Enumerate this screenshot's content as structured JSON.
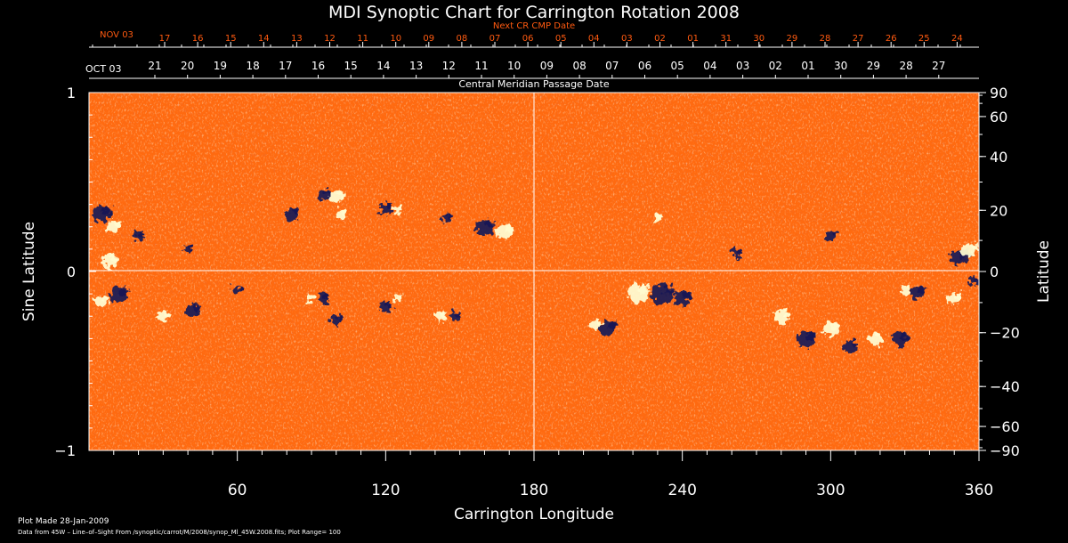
{
  "chart_data": {
    "type": "heatmap",
    "title": "MDI Synoptic Chart for Carrington Rotation 2008",
    "xlabel": "Carrington Longitude",
    "ylabel_left": "Sine Latitude",
    "ylabel_right": "Latitude",
    "xlim": [
      0,
      360
    ],
    "ylim": [
      -1,
      1
    ],
    "x_ticks": [
      60,
      120,
      180,
      240,
      300,
      360
    ],
    "y_ticks_left": [
      "1",
      "0",
      "−1"
    ],
    "y_ticks_right": [
      90,
      60,
      40,
      20,
      0,
      -20,
      -40,
      -60,
      -90
    ],
    "y_ticks_right_labels": [
      "90",
      "60",
      "40",
      "20",
      "0",
      "−20",
      "−40",
      "−60",
      "−90"
    ],
    "top_axis": {
      "title": "Next CR CMP Date",
      "start_label": "NOV 03",
      "dates": [
        "17",
        "16",
        "15",
        "14",
        "13",
        "12",
        "11",
        "10",
        "09",
        "08",
        "07",
        "06",
        "05",
        "04",
        "03",
        "02",
        "01",
        "31",
        "30",
        "29",
        "28",
        "27",
        "26",
        "25",
        "24"
      ]
    },
    "mid_axis": {
      "title": "Central Meridian Passage Date",
      "start_label": "OCT 03",
      "dates": [
        "21",
        "20",
        "19",
        "18",
        "17",
        "16",
        "15",
        "14",
        "13",
        "12",
        "11",
        "10",
        "09",
        "08",
        "07",
        "06",
        "05",
        "04",
        "03",
        "02",
        "01",
        "30",
        "29",
        "28",
        "27"
      ]
    },
    "colormap": {
      "background": "#ff6a10",
      "positive": "#fffbd0",
      "negative": "#1a1a55",
      "range_max": 100
    },
    "active_regions": [
      {
        "lon": 5,
        "sinlat": 0.32,
        "pol": "neg",
        "size": 1.0
      },
      {
        "lon": 10,
        "sinlat": 0.25,
        "pol": "pos",
        "size": 0.8
      },
      {
        "lon": 8,
        "sinlat": 0.06,
        "pol": "pos",
        "size": 0.9
      },
      {
        "lon": 20,
        "sinlat": 0.2,
        "pol": "neg",
        "size": 0.6
      },
      {
        "lon": 12,
        "sinlat": -0.13,
        "pol": "neg",
        "size": 1.0
      },
      {
        "lon": 5,
        "sinlat": -0.17,
        "pol": "pos",
        "size": 0.7
      },
      {
        "lon": 40,
        "sinlat": 0.13,
        "pol": "neg",
        "size": 0.5
      },
      {
        "lon": 42,
        "sinlat": -0.22,
        "pol": "neg",
        "size": 0.8
      },
      {
        "lon": 30,
        "sinlat": -0.25,
        "pol": "pos",
        "size": 0.7
      },
      {
        "lon": 100,
        "sinlat": 0.42,
        "pol": "pos",
        "size": 0.8
      },
      {
        "lon": 95,
        "sinlat": 0.43,
        "pol": "neg",
        "size": 0.7
      },
      {
        "lon": 102,
        "sinlat": 0.32,
        "pol": "pos",
        "size": 0.6
      },
      {
        "lon": 82,
        "sinlat": 0.32,
        "pol": "neg",
        "size": 0.8
      },
      {
        "lon": 120,
        "sinlat": 0.35,
        "pol": "neg",
        "size": 0.7
      },
      {
        "lon": 125,
        "sinlat": 0.35,
        "pol": "pos",
        "size": 0.5
      },
      {
        "lon": 160,
        "sinlat": 0.25,
        "pol": "neg",
        "size": 1.0
      },
      {
        "lon": 168,
        "sinlat": 0.22,
        "pol": "pos",
        "size": 0.9
      },
      {
        "lon": 145,
        "sinlat": 0.3,
        "pol": "neg",
        "size": 0.6
      },
      {
        "lon": 95,
        "sinlat": -0.15,
        "pol": "neg",
        "size": 0.6
      },
      {
        "lon": 90,
        "sinlat": -0.15,
        "pol": "pos",
        "size": 0.5
      },
      {
        "lon": 100,
        "sinlat": -0.27,
        "pol": "neg",
        "size": 0.7
      },
      {
        "lon": 120,
        "sinlat": -0.2,
        "pol": "neg",
        "size": 0.7
      },
      {
        "lon": 148,
        "sinlat": -0.25,
        "pol": "neg",
        "size": 0.6
      },
      {
        "lon": 142,
        "sinlat": -0.25,
        "pol": "pos",
        "size": 0.6
      },
      {
        "lon": 125,
        "sinlat": -0.15,
        "pol": "pos",
        "size": 0.5
      },
      {
        "lon": 60,
        "sinlat": -0.1,
        "pol": "neg",
        "size": 0.5
      },
      {
        "lon": 222,
        "sinlat": -0.12,
        "pol": "pos",
        "size": 1.2
      },
      {
        "lon": 232,
        "sinlat": -0.13,
        "pol": "neg",
        "size": 1.3
      },
      {
        "lon": 240,
        "sinlat": -0.15,
        "pol": "neg",
        "size": 0.9
      },
      {
        "lon": 210,
        "sinlat": -0.32,
        "pol": "neg",
        "size": 0.9
      },
      {
        "lon": 205,
        "sinlat": -0.3,
        "pol": "pos",
        "size": 0.6
      },
      {
        "lon": 280,
        "sinlat": -0.25,
        "pol": "pos",
        "size": 0.8
      },
      {
        "lon": 290,
        "sinlat": -0.38,
        "pol": "neg",
        "size": 1.0
      },
      {
        "lon": 300,
        "sinlat": -0.32,
        "pol": "pos",
        "size": 0.9
      },
      {
        "lon": 308,
        "sinlat": -0.42,
        "pol": "neg",
        "size": 0.8
      },
      {
        "lon": 318,
        "sinlat": -0.38,
        "pol": "pos",
        "size": 0.8
      },
      {
        "lon": 328,
        "sinlat": -0.38,
        "pol": "neg",
        "size": 0.9
      },
      {
        "lon": 335,
        "sinlat": -0.12,
        "pol": "neg",
        "size": 0.8
      },
      {
        "lon": 330,
        "sinlat": -0.1,
        "pol": "pos",
        "size": 0.6
      },
      {
        "lon": 350,
        "sinlat": -0.15,
        "pol": "pos",
        "size": 0.7
      },
      {
        "lon": 352,
        "sinlat": 0.08,
        "pol": "neg",
        "size": 1.0
      },
      {
        "lon": 356,
        "sinlat": 0.12,
        "pol": "pos",
        "size": 0.9
      },
      {
        "lon": 358,
        "sinlat": -0.05,
        "pol": "neg",
        "size": 0.6
      },
      {
        "lon": 262,
        "sinlat": 0.1,
        "pol": "neg",
        "size": 0.6
      },
      {
        "lon": 300,
        "sinlat": 0.2,
        "pol": "neg",
        "size": 0.6
      },
      {
        "lon": 230,
        "sinlat": 0.3,
        "pol": "pos",
        "size": 0.5
      }
    ]
  },
  "footer": {
    "plot_made": "Plot Made 28-Jan-2009",
    "data_source": "Data from 45W – Line–of–Sight From /synoptic/carrot/M/2008/synop_Ml_45W.2008.fits; Plot Range=  100"
  }
}
